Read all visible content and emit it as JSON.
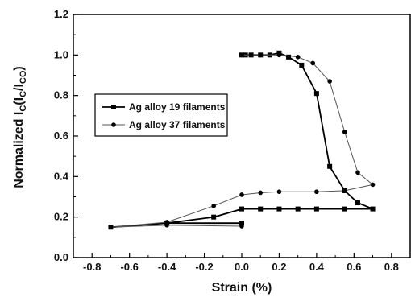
{
  "chart_data": {
    "type": "line",
    "xlabel": "Strain (%)",
    "ylabel": {
      "prefix": "Normalized I",
      "sub1": "C",
      "mid": "(I",
      "sub2": "C",
      "slash": "/I",
      "sub3": "CO",
      "suffix": ")"
    },
    "xlim": [
      -0.9,
      0.9
    ],
    "ylim": [
      0.0,
      1.2
    ],
    "xticks": [
      "-0.8",
      "-0.6",
      "-0.4",
      "-0.2",
      "0.0",
      "0.2",
      "0.4",
      "0.6",
      "0.8"
    ],
    "yticks": [
      "0.0",
      "0.2",
      "0.4",
      "0.6",
      "0.8",
      "1.0",
      "1.2"
    ],
    "grid": false,
    "legend_position": "center-left",
    "series": [
      {
        "name": "Ag alloy 19 filaments",
        "marker": "square",
        "color": "#000000",
        "x": [
          0.0,
          0.02,
          0.05,
          0.1,
          0.15,
          0.2,
          0.25,
          0.32,
          0.4,
          0.47,
          0.55,
          0.62,
          0.7,
          0.55,
          0.4,
          0.3,
          0.2,
          0.1,
          0.0,
          -0.15,
          -0.4,
          -0.7,
          -0.4,
          0.0
        ],
        "y": [
          1.0,
          1.0,
          1.0,
          1.0,
          1.0,
          1.01,
          0.99,
          0.95,
          0.81,
          0.45,
          0.33,
          0.27,
          0.24,
          0.24,
          0.24,
          0.24,
          0.24,
          0.24,
          0.24,
          0.2,
          0.17,
          0.15,
          0.17,
          0.17
        ]
      },
      {
        "name": "Ag alloy 37 filaments",
        "marker": "circle",
        "color": "#555555",
        "x": [
          0.0,
          0.05,
          0.1,
          0.2,
          0.3,
          0.38,
          0.47,
          0.55,
          0.62,
          0.7,
          0.55,
          0.4,
          0.2,
          0.1,
          0.0,
          -0.15,
          -0.4,
          -0.7,
          -0.4,
          0.0
        ],
        "y": [
          1.0,
          1.0,
          1.0,
          1.0,
          0.99,
          0.96,
          0.87,
          0.62,
          0.42,
          0.36,
          0.33,
          0.325,
          0.325,
          0.32,
          0.31,
          0.255,
          0.175,
          0.15,
          0.16,
          0.155
        ]
      }
    ]
  }
}
